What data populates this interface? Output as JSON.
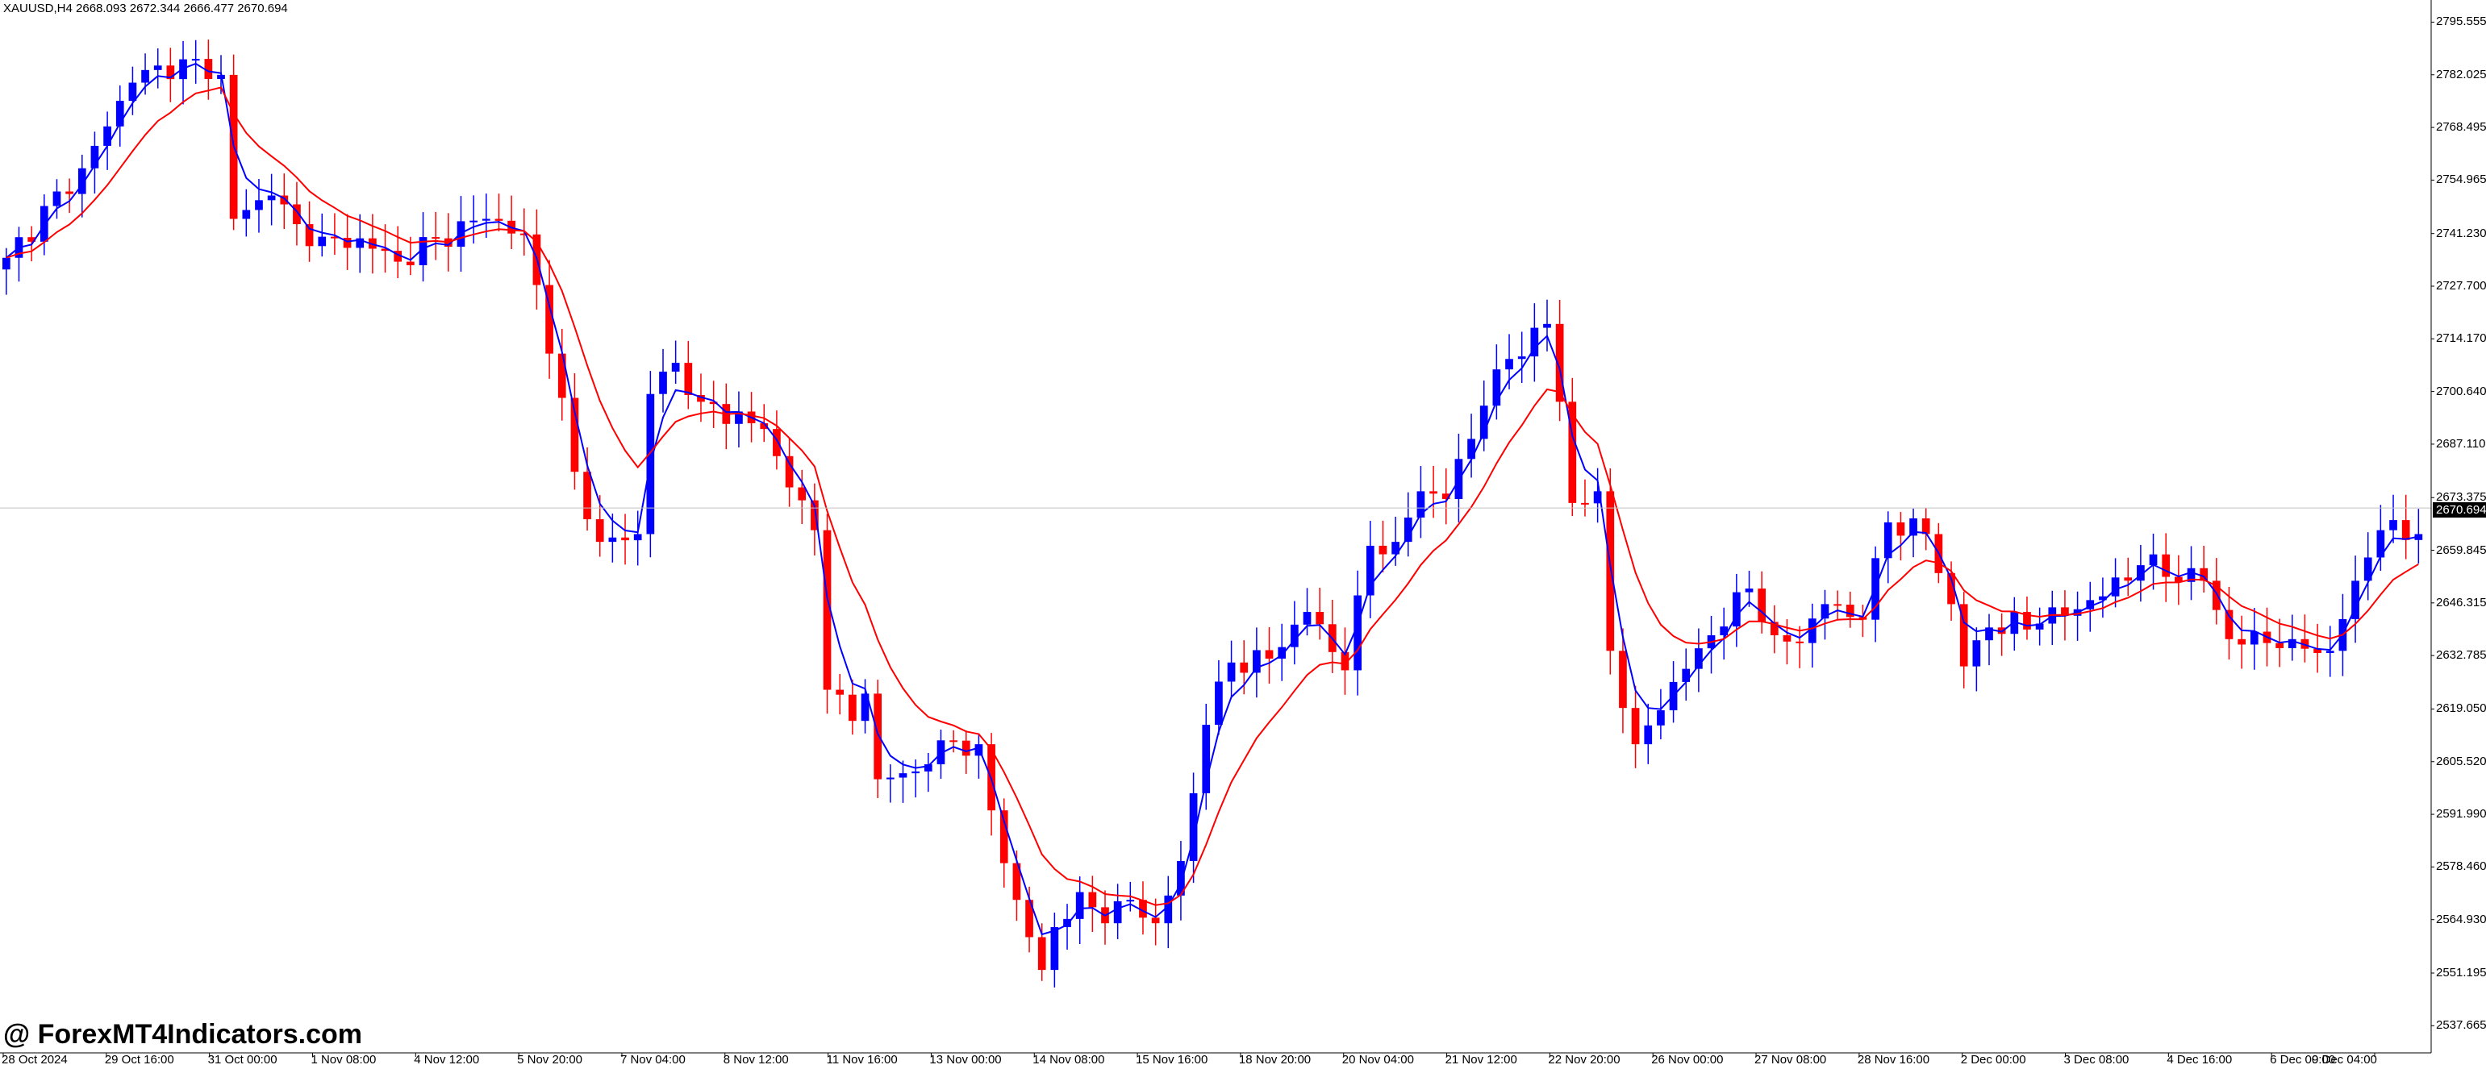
{
  "chart_title": "XAUUSD,H4  2668.093 2672.344 2666.477 2670.694",
  "watermark": "@ ForexMT4Indicators.com",
  "current_price": "2670.694",
  "colors": {
    "background": "#ffffff",
    "bull_candle": "#0000ff",
    "bear_candle": "#ff0000",
    "fast_ma": "#0000ff",
    "slow_ma": "#ff0000",
    "grid_line": "#c0c0c0",
    "axis": "#000000"
  },
  "price_axis_labels": [
    "2795.555",
    "2782.025",
    "2768.495",
    "2754.965",
    "2741.230",
    "2727.700",
    "2714.170",
    "2700.640",
    "2687.110",
    "2673.375",
    "2659.845",
    "2646.315",
    "2632.785",
    "2619.050",
    "2605.520",
    "2591.990",
    "2578.460",
    "2564.930",
    "2551.195",
    "2537.665"
  ],
  "time_axis_labels": [
    "28 Oct 2024",
    "29 Oct 16:00",
    "31 Oct 00:00",
    "1 Nov 08:00",
    "4 Nov 12:00",
    "5 Nov 20:00",
    "7 Nov 04:00",
    "8 Nov 12:00",
    "11 Nov 16:00",
    "13 Nov 00:00",
    "14 Nov 08:00",
    "15 Nov 16:00",
    "18 Nov 20:00",
    "20 Nov 04:00",
    "21 Nov 12:00",
    "22 Nov 20:00",
    "26 Nov 00:00",
    "27 Nov 08:00",
    "28 Nov 16:00",
    "2 Dec 00:00",
    "3 Dec 08:00",
    "4 Dec 16:00",
    "6 Dec 00:00",
    "9 Dec 04:00"
  ],
  "chart_data": {
    "type": "candlestick",
    "symbol": "XAUUSD",
    "timeframe": "H4",
    "ylim": [
      2534,
      2800
    ],
    "grid": false,
    "close_anchors": [
      [
        0,
        2735
      ],
      [
        6,
        2758
      ],
      [
        10,
        2780
      ],
      [
        14,
        2786
      ],
      [
        17,
        2782
      ],
      [
        18,
        2745
      ],
      [
        21,
        2751
      ],
      [
        24,
        2738
      ],
      [
        28,
        2740
      ],
      [
        31,
        2734
      ],
      [
        34,
        2740
      ],
      [
        38,
        2745
      ],
      [
        41,
        2741
      ],
      [
        42,
        2728
      ],
      [
        44,
        2699
      ],
      [
        45,
        2680
      ],
      [
        47,
        2662
      ],
      [
        50,
        2664
      ],
      [
        51,
        2700
      ],
      [
        53,
        2708
      ],
      [
        55,
        2698
      ],
      [
        60,
        2691
      ],
      [
        62,
        2676
      ],
      [
        64,
        2665
      ],
      [
        65,
        2624
      ],
      [
        67,
        2616
      ],
      [
        68,
        2623
      ],
      [
        69,
        2601
      ],
      [
        72,
        2603
      ],
      [
        74,
        2611
      ],
      [
        77,
        2610
      ],
      [
        78,
        2593
      ],
      [
        80,
        2570
      ],
      [
        82,
        2552
      ],
      [
        83,
        2563
      ],
      [
        85,
        2572
      ],
      [
        87,
        2564
      ],
      [
        89,
        2570
      ],
      [
        91,
        2564
      ],
      [
        93,
        2580
      ],
      [
        95,
        2615
      ],
      [
        97,
        2631
      ],
      [
        100,
        2632
      ],
      [
        103,
        2644
      ],
      [
        106,
        2629
      ],
      [
        108,
        2661
      ],
      [
        110,
        2662
      ],
      [
        112,
        2675
      ],
      [
        114,
        2673
      ],
      [
        117,
        2697
      ],
      [
        119,
        2709
      ],
      [
        122,
        2718
      ],
      [
        123,
        2698
      ],
      [
        124,
        2672
      ],
      [
        126,
        2675
      ],
      [
        127,
        2634
      ],
      [
        129,
        2610
      ],
      [
        132,
        2626
      ],
      [
        135,
        2638
      ],
      [
        138,
        2650
      ],
      [
        140,
        2638
      ],
      [
        142,
        2636
      ],
      [
        144,
        2646
      ],
      [
        147,
        2642
      ],
      [
        149,
        2667
      ],
      [
        152,
        2664
      ],
      [
        154,
        2646
      ],
      [
        155,
        2630
      ],
      [
        157,
        2640
      ],
      [
        161,
        2641
      ],
      [
        166,
        2648
      ],
      [
        169,
        2656
      ],
      [
        174,
        2652
      ],
      [
        176,
        2637
      ],
      [
        179,
        2636
      ],
      [
        181,
        2637
      ],
      [
        184,
        2634
      ],
      [
        186,
        2652
      ],
      [
        188,
        2665
      ],
      [
        191,
        2664
      ]
    ],
    "fast_ma": {
      "name": "fast MA",
      "color": "#0000ff"
    },
    "slow_ma": {
      "name": "slow MA",
      "color": "#ff0000"
    }
  }
}
